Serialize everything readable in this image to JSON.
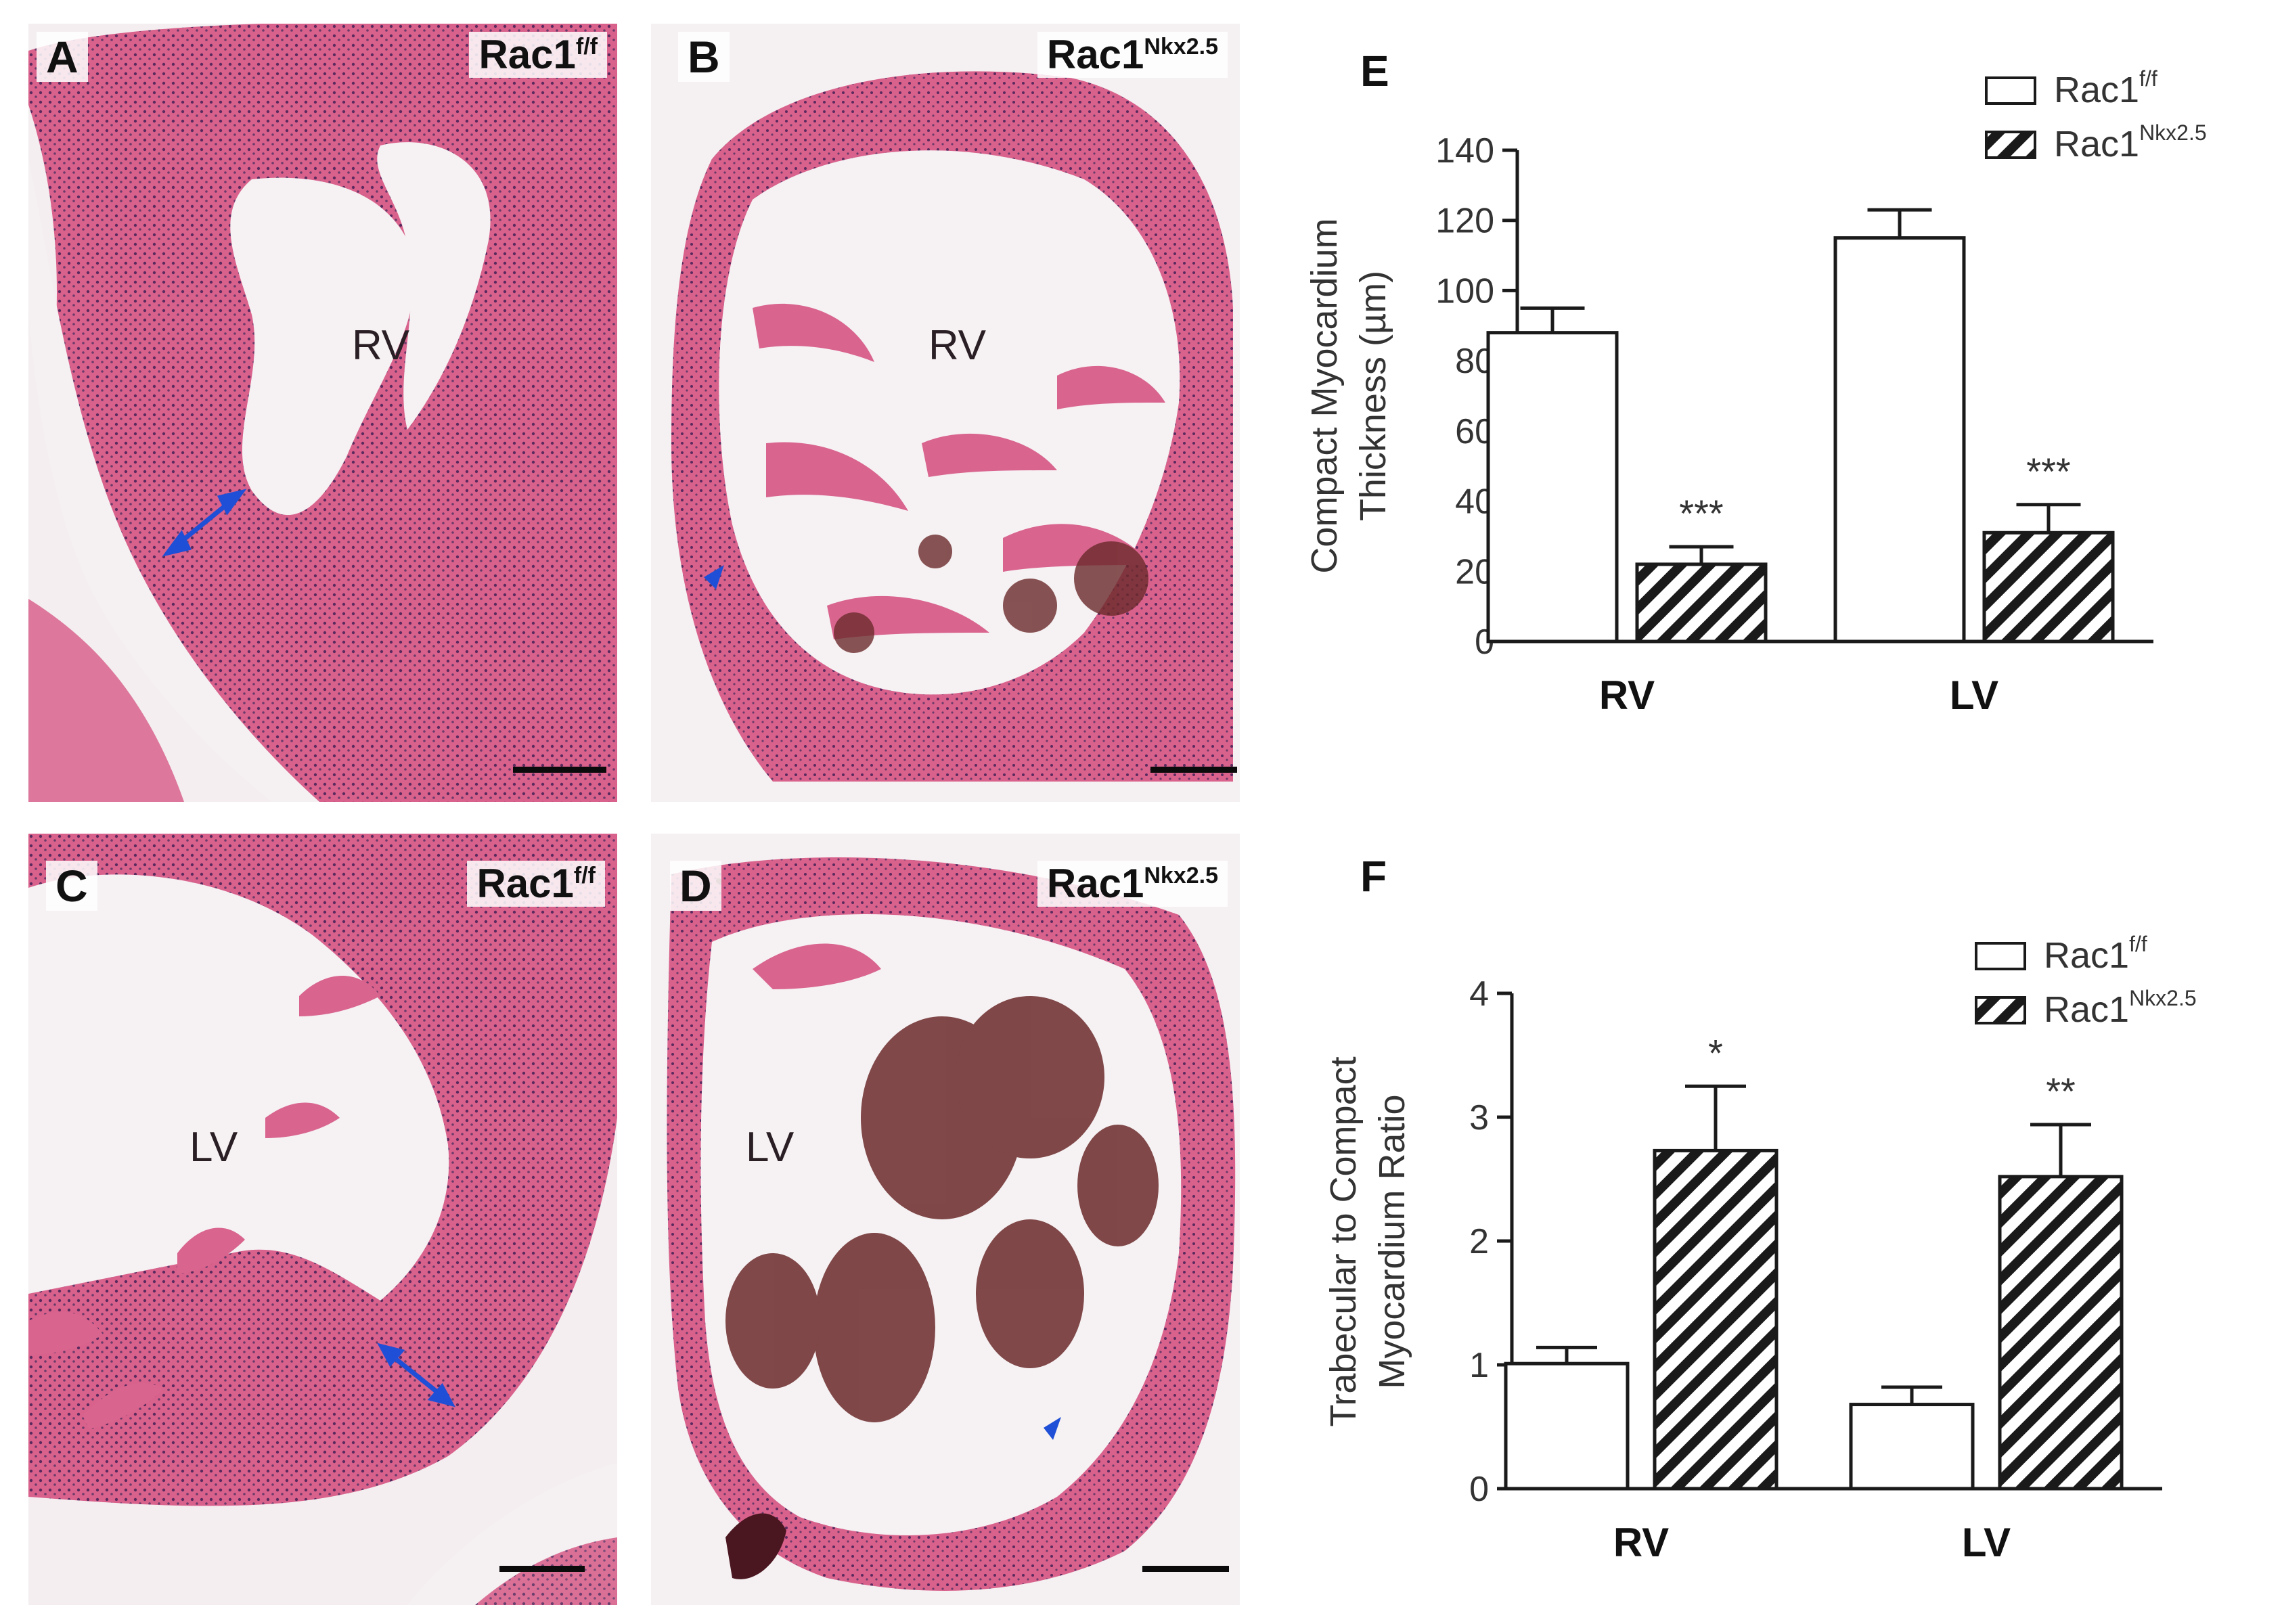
{
  "micrographs": [
    {
      "letter": "A",
      "genotype": "Rac1",
      "sup": "f/f",
      "chamber": "RV"
    },
    {
      "letter": "B",
      "genotype": "Rac1",
      "sup": "Nkx2.5",
      "chamber": "RV"
    },
    {
      "letter": "C",
      "genotype": "Rac1",
      "sup": "f/f",
      "chamber": "LV"
    },
    {
      "letter": "D",
      "genotype": "Rac1",
      "sup": "Nkx2.5",
      "chamber": "LV"
    }
  ],
  "colors": {
    "tissue": "#d65a86",
    "tissue_dark": "#b8446f",
    "blood": "#6b2a2a",
    "background": "#f3eef0",
    "arrow": "#1f4fd6",
    "bar_fill": "#ffffff",
    "bar_stroke": "#1a1a1a"
  },
  "chart_data": [
    {
      "panel": "E",
      "type": "bar",
      "categories": [
        "RV",
        "LV"
      ],
      "ylabel": [
        "Compact Myocardium",
        "Thickness (µm)"
      ],
      "ylim": [
        0,
        140
      ],
      "yticks": [
        0,
        20,
        40,
        60,
        80,
        100,
        120,
        140
      ],
      "legend_position": "top-right",
      "series": [
        {
          "name": "Rac1",
          "sup": "f/f",
          "pattern": "solid-white",
          "values": [
            88,
            115
          ],
          "errors": [
            7,
            8
          ],
          "stars": [
            "",
            ""
          ]
        },
        {
          "name": "Rac1",
          "sup": "Nkx2.5",
          "pattern": "hatched",
          "values": [
            22,
            31
          ],
          "errors": [
            5,
            8
          ],
          "stars": [
            "***",
            "***"
          ]
        }
      ]
    },
    {
      "panel": "F",
      "type": "bar",
      "categories": [
        "RV",
        "LV"
      ],
      "ylabel": [
        "Trabecular to Compact",
        "Myocardium Ratio"
      ],
      "ylim": [
        0,
        4
      ],
      "yticks": [
        0,
        1,
        2,
        3,
        4
      ],
      "legend_position": "top-right",
      "series": [
        {
          "name": "Rac1",
          "sup": "f/f",
          "pattern": "solid-white",
          "values": [
            1.01,
            0.68
          ],
          "errors": [
            0.13,
            0.14
          ],
          "stars": [
            "",
            ""
          ]
        },
        {
          "name": "Rac1",
          "sup": "Nkx2.5",
          "pattern": "hatched",
          "values": [
            2.73,
            2.52
          ],
          "errors": [
            0.52,
            0.42
          ],
          "stars": [
            "*",
            "**"
          ]
        }
      ]
    }
  ]
}
